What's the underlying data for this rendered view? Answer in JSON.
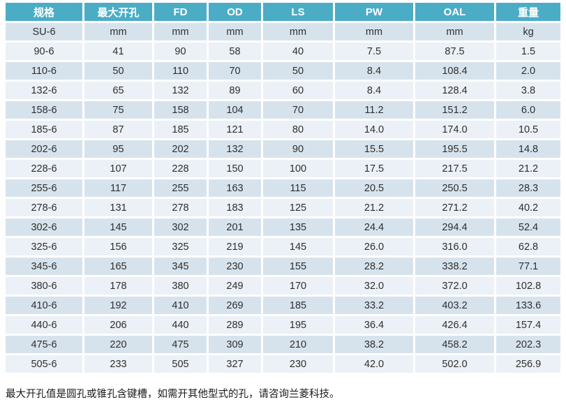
{
  "colors": {
    "header_bg": "#4BACC6",
    "header_text": "#FFFFFF",
    "band_dark": "#D7E3EC",
    "band_light": "#EBF1F6",
    "cell_text": "#2E2E2E",
    "footnote_text": "#1A1A1A",
    "page_bg": "#FFFFFF"
  },
  "table": {
    "columns": [
      {
        "id": "spec",
        "label": "规格"
      },
      {
        "id": "max-bore",
        "label": "最大开孔"
      },
      {
        "id": "fd",
        "label": "FD"
      },
      {
        "id": "od",
        "label": "OD"
      },
      {
        "id": "ls",
        "label": "LS"
      },
      {
        "id": "pw",
        "label": "PW"
      },
      {
        "id": "oal",
        "label": "OAL"
      },
      {
        "id": "weight",
        "label": "重量"
      }
    ],
    "units_row": [
      "SU-6",
      "mm",
      "mm",
      "mm",
      "mm",
      "mm",
      "mm",
      "kg"
    ],
    "rows": [
      [
        "90-6",
        "41",
        "90",
        "58",
        "40",
        "7.5",
        "87.5",
        "1.5"
      ],
      [
        "110-6",
        "50",
        "110",
        "70",
        "50",
        "8.4",
        "108.4",
        "2.0"
      ],
      [
        "132-6",
        "65",
        "132",
        "89",
        "60",
        "8.4",
        "128.4",
        "3.8"
      ],
      [
        "158-6",
        "75",
        "158",
        "104",
        "70",
        "11.2",
        "151.2",
        "6.0"
      ],
      [
        "185-6",
        "87",
        "185",
        "121",
        "80",
        "14.0",
        "174.0",
        "10.5"
      ],
      [
        "202-6",
        "95",
        "202",
        "132",
        "90",
        "15.5",
        "195.5",
        "14.8"
      ],
      [
        "228-6",
        "107",
        "228",
        "150",
        "100",
        "17.5",
        "217.5",
        "21.2"
      ],
      [
        "255-6",
        "117",
        "255",
        "163",
        "115",
        "20.5",
        "250.5",
        "28.3"
      ],
      [
        "278-6",
        "131",
        "278",
        "183",
        "125",
        "21.2",
        "271.2",
        "40.2"
      ],
      [
        "302-6",
        "145",
        "302",
        "201",
        "135",
        "24.4",
        "294.4",
        "52.4"
      ],
      [
        "325-6",
        "156",
        "325",
        "219",
        "145",
        "26.0",
        "316.0",
        "62.8"
      ],
      [
        "345-6",
        "165",
        "345",
        "230",
        "155",
        "28.2",
        "338.2",
        "77.1"
      ],
      [
        "380-6",
        "178",
        "380",
        "249",
        "170",
        "32.0",
        "372.0",
        "102.8"
      ],
      [
        "410-6",
        "192",
        "410",
        "269",
        "185",
        "33.2",
        "403.2",
        "133.6"
      ],
      [
        "440-6",
        "206",
        "440",
        "289",
        "195",
        "36.4",
        "426.4",
        "157.4"
      ],
      [
        "475-6",
        "220",
        "475",
        "309",
        "210",
        "38.2",
        "458.2",
        "202.3"
      ],
      [
        "505-6",
        "233",
        "505",
        "327",
        "230",
        "42.0",
        "502.0",
        "256.9"
      ]
    ]
  },
  "footnote": "最大开孔值是圆孔或锥孔含键槽，如需开其他型式的孔，请咨询兰菱科技。"
}
